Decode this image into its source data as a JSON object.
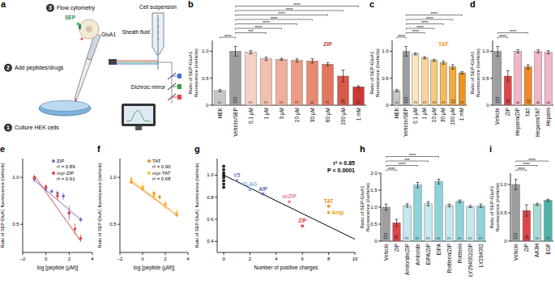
{
  "diagram": {
    "title": "a",
    "steps": [
      {
        "number": 1,
        "label": "Culture HEK cells"
      },
      {
        "number": 2,
        "label": "Add peptides/drugs"
      },
      {
        "number": 3,
        "label": "Flow cytometry"
      }
    ],
    "cell_labels": [
      "SEP",
      "GluA1"
    ],
    "cytometer_labels": [
      "Cell suspension",
      "Sheath fluid",
      "Dichroic mirror"
    ]
  },
  "chart_data": [
    {
      "type": "bar",
      "title": "b",
      "y_label": "Ratio of SEP-GluA1 fluorescence (/vehicle)",
      "categories": [
        "HEK",
        "Vehicle/SEP",
        "0.1 μM",
        "1 μM",
        "3 μM",
        "10 μM",
        "30 μM",
        "60 μM",
        "100 μM",
        "1 mM"
      ],
      "values": [
        0.27,
        1.0,
        0.98,
        0.86,
        0.85,
        0.83,
        0.82,
        0.76,
        0.54,
        0.34
      ],
      "errors": [
        0.02,
        0.09,
        0.03,
        0.03,
        0.02,
        0.03,
        0.04,
        0.03,
        0.11,
        0.02
      ],
      "n": [
        5,
        123,
        3,
        3,
        3,
        3,
        6,
        3,
        26,
        3
      ],
      "colors": [
        "#c8c8c8",
        "#9e9e9e",
        "#f6d0c4",
        "#f3bfae",
        "#efad9a",
        "#ec9c86",
        "#e88a72",
        "#e3765f",
        "#d95a4a",
        "#c93a33"
      ],
      "ylim": [
        0,
        1.2
      ],
      "yticks": [
        0,
        0.5,
        {
          "value": 1,
          "label": "1.0"
        }
      ],
      "annotations": [
        "ZIP"
      ],
      "significance": [
        {
          "from": 0,
          "to": 1,
          "label": "****"
        },
        {
          "from": 1,
          "to": 3,
          "label": "***"
        },
        {
          "from": 1,
          "to": 4,
          "label": "****"
        },
        {
          "from": 1,
          "to": 5,
          "label": "****"
        },
        {
          "from": 1,
          "to": 6,
          "label": "****"
        },
        {
          "from": 1,
          "to": 7,
          "label": "****"
        },
        {
          "from": 1,
          "to": 8,
          "label": "****"
        },
        {
          "from": 1,
          "to": 9,
          "label": "****"
        }
      ]
    },
    {
      "type": "bar",
      "title": "c",
      "y_label": "Ratio of SEP-GluA1 fluorescence (/vehicle)",
      "categories": [
        "HEK",
        "Vehicle/SEP",
        "0.1 μM",
        "1 μM",
        "10 μM",
        "30 μM",
        "100 μM",
        "1 mM"
      ],
      "values": [
        0.27,
        1.0,
        0.95,
        0.88,
        0.83,
        0.79,
        0.71,
        0.6
      ],
      "errors": [
        0.02,
        0.09,
        0.02,
        0.02,
        0.02,
        0.03,
        0.04,
        0.02
      ],
      "n": [
        5,
        123,
        3,
        3,
        3,
        3,
        12,
        3
      ],
      "colors": [
        "#c8c8c8",
        "#9e9e9e",
        "#fbe5bd",
        "#f9d79c",
        "#f7c97c",
        "#f5ba5c",
        "#f2a93c",
        "#ee9420"
      ],
      "ylim": [
        0,
        1.2
      ],
      "yticks": [
        0,
        0.5,
        {
          "value": 1,
          "label": "1.0"
        }
      ],
      "annotations": [
        "TAT"
      ],
      "significance": [
        {
          "from": 0,
          "to": 1,
          "label": "****"
        },
        {
          "from": 1,
          "to": 3,
          "label": "****"
        },
        {
          "from": 1,
          "to": 4,
          "label": "****"
        },
        {
          "from": 1,
          "to": 5,
          "label": "****"
        },
        {
          "from": 1,
          "to": 6,
          "label": "****"
        },
        {
          "from": 1,
          "to": 7,
          "label": "****"
        }
      ]
    },
    {
      "type": "bar",
      "title": "d",
      "y_label": "Ratio of SEP-GluA1 fluorescence (/vehicle)",
      "categories": [
        "Vehicle",
        "ZIP",
        "Heparin/ZIP",
        "TAT",
        "Heparin/TAT",
        "Heparin"
      ],
      "values": [
        1.0,
        0.54,
        1.0,
        0.71,
        1.0,
        0.98
      ],
      "errors": [
        0.09,
        0.1,
        0.03,
        0.04,
        0.03,
        0.03
      ],
      "n": [
        123,
        26,
        6,
        12,
        6,
        6
      ],
      "colors": [
        "#9e9e9e",
        "#e0454a",
        "#f2b7c6",
        "#f08a24",
        "#f2b7c6",
        "#f2b7c6"
      ],
      "ylim": [
        0,
        1.2
      ],
      "yticks": [
        0,
        0.5,
        {
          "value": 1,
          "label": "1.0"
        }
      ],
      "significance": [
        {
          "from": 0,
          "to": 1,
          "label": "****"
        },
        {
          "from": 0,
          "to": 3,
          "label": "****"
        }
      ]
    },
    {
      "type": "scatter",
      "title": "e",
      "y_label": "Ratio of SEP-GluA1 fluorescence (/vehicle)",
      "x_label": "log [peptide (μM)]",
      "legend": "upper right",
      "series": [
        {
          "name": "ZIP",
          "color": "#7b68c8",
          "x": [
            -1,
            0,
            0.5,
            1,
            1.5,
            2,
            3
          ],
          "values": [
            0.98,
            0.88,
            0.85,
            0.83,
            0.8,
            0.62,
            0.55
          ],
          "errors": [
            0.03,
            0.03,
            0.02,
            0.03,
            0.04,
            0.08,
            0.03
          ],
          "fit": {
            "x": [
              -1,
              3
            ],
            "values": [
              0.97,
              0.55
            ]
          }
        },
        {
          "name": "myr-ZIP",
          "color": "#e0454a",
          "x": [
            -1,
            0,
            1,
            2,
            2.5,
            3
          ],
          "values": [
            1.0,
            0.9,
            0.8,
            0.62,
            0.45,
            0.35
          ],
          "errors": [
            0.03,
            0.03,
            0.04,
            0.05,
            0.06,
            0.04
          ],
          "fit": {
            "x": [
              -1,
              3
            ],
            "values": [
              1.02,
              0.32
            ]
          }
        }
      ],
      "annotations": [
        "r² = 0.89",
        "r² = 0.61"
      ],
      "xlim": [
        -2,
        4
      ],
      "xticks": [
        {
          "value": -2,
          "label": "−2"
        },
        0,
        2,
        4
      ],
      "ylim": [
        0.2,
        1.2
      ],
      "yticks": [
        0.5,
        {
          "value": 1,
          "label": "1.0"
        }
      ]
    },
    {
      "type": "scatter",
      "title": "f",
      "y_label": "Ratio of SEP-GluA1 fluorescence (/vehicle)",
      "x_label": "log [peptide (μM)]",
      "legend": "upper right",
      "series": [
        {
          "name": "TAT",
          "color": "#f08a24",
          "x": [
            -1,
            0,
            1,
            1.5,
            2,
            3
          ],
          "values": [
            0.95,
            0.88,
            0.83,
            0.79,
            0.71,
            0.6
          ],
          "errors": [
            0.02,
            0.02,
            0.02,
            0.03,
            0.04,
            0.02
          ],
          "fit": {
            "x": [
              -1,
              3
            ],
            "values": [
              0.95,
              0.6
            ]
          }
        },
        {
          "name": "myr-TAT",
          "color": "#f2c037",
          "x": [
            -1,
            0,
            1,
            2,
            3
          ],
          "values": [
            0.98,
            0.9,
            0.8,
            0.7,
            0.62
          ],
          "errors": [
            0.03,
            0.04,
            0.05,
            0.04,
            0.05
          ],
          "fit": {
            "x": [
              -1,
              3
            ],
            "values": [
              0.97,
              0.6
            ]
          }
        }
      ],
      "annotations": [
        "r² = 0.90",
        "r² = 0.68"
      ],
      "xlim": [
        -2,
        4
      ],
      "xticks": [
        {
          "value": -2,
          "label": "−2"
        },
        0,
        2,
        4
      ],
      "ylim": [
        0.2,
        1.2
      ],
      "yticks": [
        0.5,
        {
          "value": 1,
          "label": "1.0"
        }
      ]
    },
    {
      "type": "scatter",
      "title": "g",
      "y_label": "Ratio of SEP-GluA1 fluorescence (/vehicle)",
      "x_label": "Number of positive charges",
      "x": [
        0,
        0,
        0,
        0,
        0,
        0,
        0,
        0,
        1,
        2,
        3,
        5,
        6,
        8,
        8
      ],
      "values": [
        1.0,
        0.95,
        1.05,
        0.92,
        1.08,
        0.98,
        1.02,
        0.89,
        0.95,
        0.87,
        0.83,
        0.76,
        0.54,
        0.72,
        0.66
      ],
      "point_labels": [
        null,
        null,
        null,
        null,
        null,
        null,
        null,
        null,
        "V5",
        "FLAG",
        "AIP",
        "scZIP",
        "ZIP",
        "TAT",
        "Antp"
      ],
      "colors": [
        "#111111",
        "#111111",
        "#111111",
        "#111111",
        "#111111",
        "#111111",
        "#111111",
        "#111111",
        "#8a6fd1",
        "#7fb3e6",
        "#5c6bc0",
        "#e57fa0",
        "#e0454a",
        "#f08a24",
        "#d9a520"
      ],
      "fit": {
        "x": [
          0,
          10
        ],
        "values": [
          1.0,
          0.42
        ]
      },
      "annotations": [
        "r² = 0.85",
        "P < 0.0001"
      ],
      "xlim": [
        -0.5,
        10
      ],
      "xticks": [
        0,
        2,
        4,
        6,
        8,
        10
      ],
      "ylim": [
        0.3,
        1.15
      ],
      "yticks": [
        0.4,
        0.6,
        0.8,
        {
          "value": 1,
          "label": "1.0"
        }
      ]
    },
    {
      "type": "bar",
      "title": "h",
      "y_label": "Ratio of SEP-GluA1 fluorescence (/vehicle)",
      "categories": [
        "Vehicle",
        "ZIP",
        "Amiloride/ZIP",
        "Amiloride",
        "EIPA/ZIP",
        "EIPA",
        "Rottlerin/ZIP",
        "Rottlerin",
        "LY294002/ZIP",
        "LY294002"
      ],
      "values": [
        1.0,
        0.54,
        1.05,
        1.65,
        1.1,
        1.75,
        1.05,
        1.17,
        1.02,
        1.04
      ],
      "errors": [
        0.09,
        0.1,
        0.05,
        0.08,
        0.06,
        0.07,
        0.04,
        0.04,
        0.03,
        0.05
      ],
      "n": [
        123,
        26,
        3,
        3,
        3,
        3,
        3,
        3,
        3,
        3
      ],
      "colors": [
        "#9e9e9e",
        "#e0454a",
        "#c4e8ec",
        "#8fd3da",
        "#c4e8ec",
        "#8fd3da",
        "#c4e8ec",
        "#8fd3da",
        "#c4e8ec",
        "#8fd3da"
      ],
      "ylim": [
        0,
        2
      ],
      "yticks": [
        0,
        0.5,
        {
          "value": 1,
          "label": "1.0"
        },
        1.5,
        {
          "value": 2,
          "label": "2.0"
        }
      ],
      "significance": [
        {
          "from": 0,
          "to": 1,
          "label": "****"
        },
        {
          "from": 0,
          "to": 3,
          "label": "****"
        },
        {
          "from": 0,
          "to": 4,
          "label": "***"
        },
        {
          "from": 0,
          "to": 5,
          "label": "****"
        }
      ]
    },
    {
      "type": "bar",
      "title": "i",
      "y_label": "Ratio of SEP-GluA1 fluorescence (/vehicle)",
      "categories": [
        "Vehicle",
        "ZIP",
        "AA3H",
        "EGF"
      ],
      "values": [
        1.0,
        0.54,
        0.65,
        0.72
      ],
      "errors": [
        0.09,
        0.1,
        0.02,
        0.02
      ],
      "n": [
        123,
        26,
        3,
        3
      ],
      "colors": [
        "#9e9e9e",
        "#e0454a",
        "#a6dcd5",
        "#4fb3a9"
      ],
      "ylim": [
        0,
        1.2
      ],
      "yticks": [
        0,
        0.5,
        {
          "value": 1,
          "label": "1.0"
        }
      ],
      "significance": [
        {
          "from": 0,
          "to": 1,
          "label": "****"
        },
        {
          "from": 0,
          "to": 2,
          "label": "****"
        },
        {
          "from": 0,
          "to": 3,
          "label": "****"
        }
      ]
    }
  ]
}
